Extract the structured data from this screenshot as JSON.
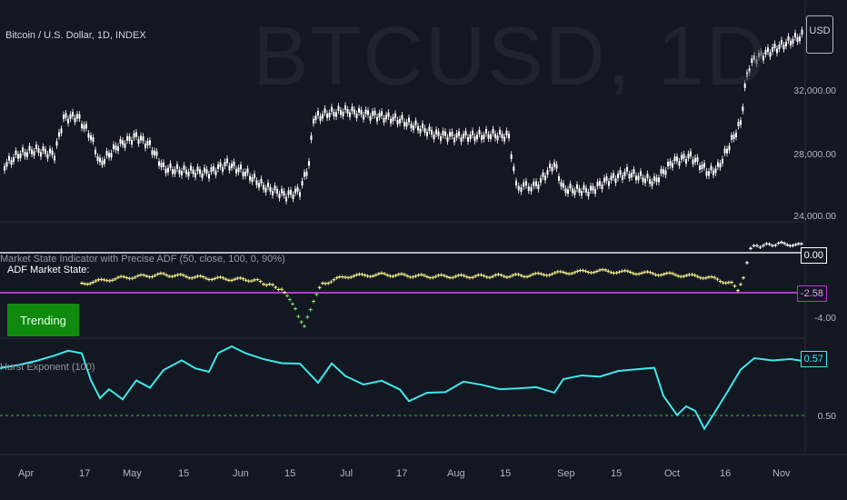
{
  "header": {
    "symbol_title": "Bitcoin / U.S. Dollar, 1D, INDEX",
    "watermark": "BTCUSD, 1D",
    "currency_button": "USD"
  },
  "price_axis": [
    "32,000.00",
    "28,000.00",
    "24,000.00"
  ],
  "adf_pane": {
    "title": "Market State Indicator with Precise ADF (50, close, 100, 0, 90%)",
    "label": "ADF Market State:",
    "state": "Trending",
    "axis_labels": [
      "0.00",
      "-2.58",
      "-4.00"
    ],
    "zero_badge": "0.00",
    "critical_badge": "-2.58"
  },
  "hurst_pane": {
    "title": "Hurst Exponent (100)",
    "axis_labels": [
      "0.50"
    ],
    "value_badge": "0.57"
  },
  "time_axis": [
    "Apr",
    "17",
    "May",
    "15",
    "Jun",
    "15",
    "Jul",
    "17",
    "Aug",
    "15",
    "Sep",
    "15",
    "Oct",
    "16",
    "Nov"
  ],
  "colors": {
    "background": "#131722",
    "candle": "#ffffff",
    "adf_dots": "#f5f08c",
    "adf_dots_low": "#7fe06a",
    "adf_critical": "#b13ac9",
    "zero_line": "#b2b5be",
    "hurst_line": "#3ee8e8",
    "hurst_ref": "#2eb82e",
    "trend_box": "#0f8a0f"
  }
}
